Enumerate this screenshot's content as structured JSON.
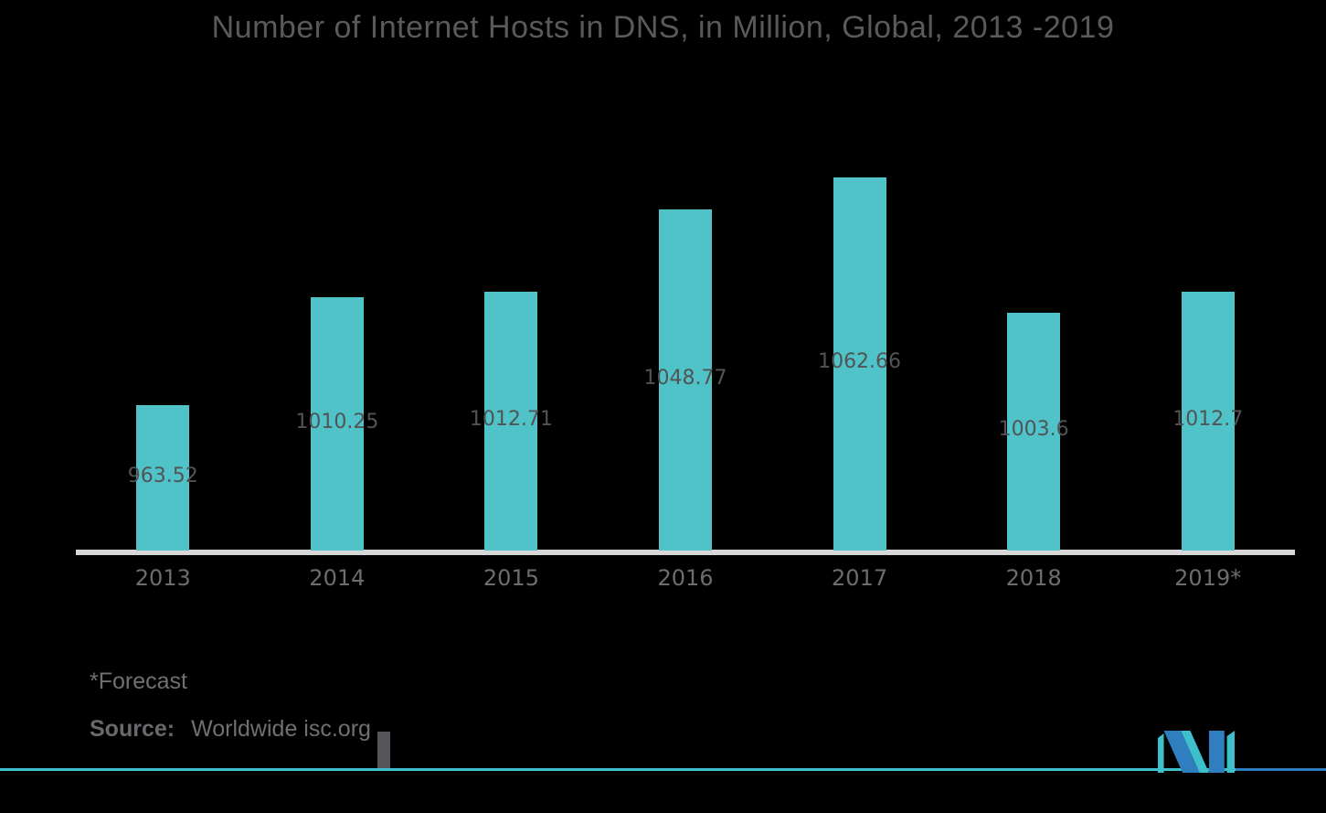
{
  "chart_data": {
    "type": "bar",
    "title": "Number of Internet Hosts in DNS, in Million, Global, 2013 -2019",
    "categories": [
      "2013",
      "2014",
      "2015",
      "2016",
      "2017",
      "2018",
      "2019*"
    ],
    "values": [
      963.52,
      1010.25,
      1012.71,
      1048.77,
      1062.66,
      1003.6,
      1012.7
    ],
    "labels": [
      "963.52",
      "1010.25",
      "1012.71",
      "1048.77",
      "1062.66",
      "1003.6",
      "1012.7"
    ],
    "xlabel": "",
    "ylabel": "",
    "ylim": [
      900,
      1100
    ],
    "grid": false,
    "legend": false,
    "label_position": "center-of-bar",
    "colors": {
      "background": "#000000",
      "bar": "#4FC3C8",
      "axis_line": "#D7D7D7",
      "title_text": "#595A5C",
      "value_label_text": "#525355",
      "tick_label_text": "#6C6D6F"
    }
  },
  "footer": {
    "forecast_note": "*Forecast",
    "source_label": "Source:",
    "source_value": "Worldwide isc.org"
  },
  "branding": {
    "logo_name": "mordor-intelligence-logo",
    "accent_teal": "#3EC0CC",
    "accent_blue": "#2E7EC0"
  }
}
